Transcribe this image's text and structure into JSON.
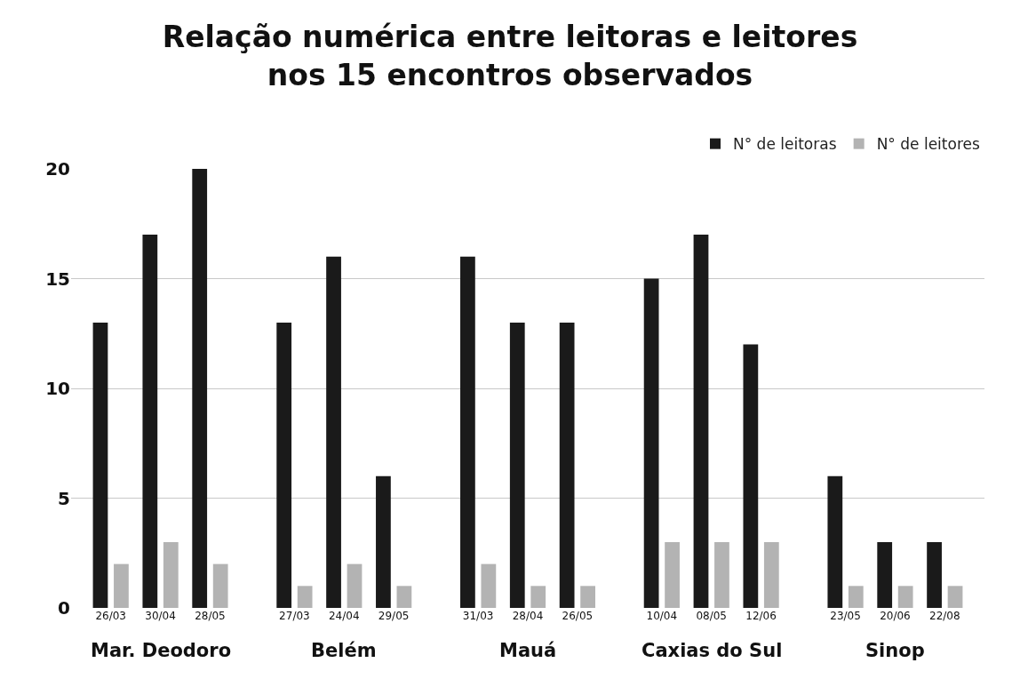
{
  "chart_data": {
    "type": "bar",
    "title": "Relação numérica entre leitoras e leitores\nnos 15 encontros observados",
    "categories": [
      "26/03",
      "30/04",
      "28/05",
      "27/03",
      "24/04",
      "29/05",
      "31/03",
      "28/04",
      "26/05",
      "10/04",
      "08/05",
      "12/06",
      "23/05",
      "20/06",
      "22/08"
    ],
    "series": [
      {
        "name": "N° de leitoras",
        "color": "#1a1a1a",
        "values": [
          13,
          17,
          20,
          13,
          16,
          6,
          16,
          13,
          13,
          15,
          17,
          12,
          6,
          3,
          3
        ]
      },
      {
        "name": "N° de leitores",
        "color": "#b3b3b3",
        "values": [
          2,
          3,
          2,
          1,
          2,
          1,
          2,
          1,
          1,
          3,
          3,
          3,
          1,
          1,
          1
        ]
      }
    ],
    "annotations": [
      "Mar. Deodoro",
      "Belém",
      "Mauá",
      "Caxias do Sul",
      "Sinop"
    ],
    "ylim": [
      0,
      20
    ],
    "yticks": [
      0,
      5,
      10,
      15,
      20
    ],
    "grid": "y",
    "legend": "top right"
  }
}
